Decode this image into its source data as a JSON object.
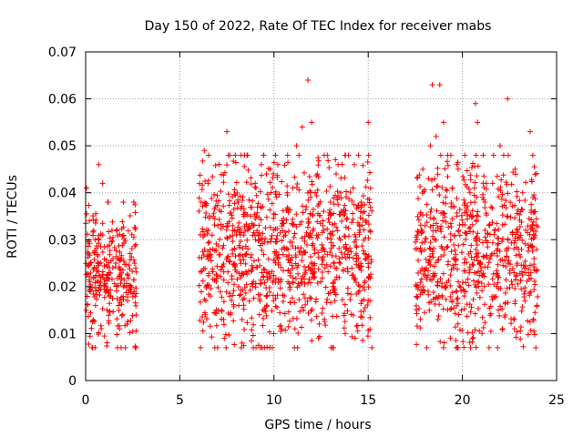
{
  "chart_data": {
    "type": "scatter",
    "title": "Day 150 of 2022, Rate Of TEC Index for receiver mabs",
    "xlabel": "GPS time / hours",
    "ylabel": "ROTI / TECUs",
    "xlim": [
      0,
      25
    ],
    "ylim": [
      0,
      0.07
    ],
    "x_ticks": [
      "0",
      "5",
      "10",
      "15",
      "20",
      "25"
    ],
    "y_ticks": [
      "0",
      "0.01",
      "0.02",
      "0.03",
      "0.04",
      "0.05",
      "0.06",
      "0.07"
    ],
    "grid": true,
    "marker": "plus",
    "color": "#ff0000",
    "segments": [
      {
        "x_start": 0.0,
        "x_end": 2.7,
        "typical": [
          0.01,
          0.035
        ],
        "peak": 0.046
      },
      {
        "x_start": 6.0,
        "x_end": 15.2,
        "typical": [
          0.01,
          0.045
        ],
        "peak": 0.064
      },
      {
        "x_start": 17.5,
        "x_end": 24.0,
        "typical": [
          0.01,
          0.045
        ],
        "peak": 0.064
      }
    ],
    "series": [
      {
        "values": [
          [
            0.05,
            0.041
          ],
          [
            0.2,
            0.034
          ],
          [
            0.5,
            0.03
          ],
          [
            0.7,
            0.046
          ],
          [
            0.9,
            0.042
          ],
          [
            1.2,
            0.038
          ],
          [
            1.4,
            0.032
          ],
          [
            1.6,
            0.025
          ],
          [
            1.8,
            0.011
          ],
          [
            2.0,
            0.038
          ],
          [
            2.2,
            0.012
          ],
          [
            2.4,
            0.02
          ],
          [
            2.6,
            0.025
          ],
          [
            6.3,
            0.049
          ],
          [
            6.5,
            0.042
          ],
          [
            6.9,
            0.037
          ],
          [
            7.2,
            0.036
          ],
          [
            7.5,
            0.053
          ],
          [
            7.8,
            0.033
          ],
          [
            8.1,
            0.038
          ],
          [
            8.3,
            0.008
          ],
          [
            8.6,
            0.048
          ],
          [
            9.0,
            0.042
          ],
          [
            9.4,
            0.037
          ],
          [
            9.6,
            0.044
          ],
          [
            9.8,
            0.045
          ],
          [
            10.2,
            0.046
          ],
          [
            10.4,
            0.011
          ],
          [
            10.7,
            0.04
          ],
          [
            11.0,
            0.041
          ],
          [
            11.2,
            0.05
          ],
          [
            11.5,
            0.054
          ],
          [
            11.8,
            0.064
          ],
          [
            12.0,
            0.055
          ],
          [
            12.3,
            0.044
          ],
          [
            12.6,
            0.033
          ],
          [
            13.0,
            0.038
          ],
          [
            13.4,
            0.046
          ],
          [
            13.8,
            0.048
          ],
          [
            14.2,
            0.041
          ],
          [
            14.6,
            0.036
          ],
          [
            15.0,
            0.055
          ],
          [
            17.6,
            0.03
          ],
          [
            17.9,
            0.045
          ],
          [
            18.2,
            0.043
          ],
          [
            18.3,
            0.05
          ],
          [
            18.4,
            0.063
          ],
          [
            18.6,
            0.052
          ],
          [
            18.8,
            0.063
          ],
          [
            19.0,
            0.055
          ],
          [
            19.4,
            0.037
          ],
          [
            19.8,
            0.032
          ],
          [
            20.4,
            0.04
          ],
          [
            20.7,
            0.059
          ],
          [
            20.8,
            0.055
          ],
          [
            21.2,
            0.038
          ],
          [
            21.6,
            0.042
          ],
          [
            22.0,
            0.05
          ],
          [
            22.4,
            0.06
          ],
          [
            22.8,
            0.045
          ],
          [
            23.2,
            0.04
          ],
          [
            23.6,
            0.053
          ],
          [
            23.9,
            0.007
          ]
        ]
      }
    ]
  }
}
